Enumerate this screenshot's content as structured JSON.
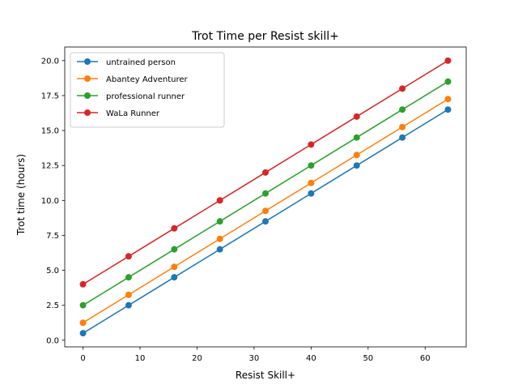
{
  "chart_data": {
    "type": "line",
    "title": "Trot Time per Resist skill+",
    "xlabel": "Resist Skill+",
    "ylabel": "Trot time (hours)",
    "xlim": [
      -3.2,
      67.2
    ],
    "ylim": [
      -0.475,
      20.975
    ],
    "x_ticks": [
      0,
      10,
      20,
      30,
      40,
      50,
      60
    ],
    "x_tick_labels": [
      "0",
      "10",
      "20",
      "30",
      "40",
      "50",
      "60"
    ],
    "y_ticks": [
      0,
      2.5,
      5,
      7.5,
      10,
      12.5,
      15,
      17.5,
      20
    ],
    "y_tick_labels": [
      "0.0",
      "2.5",
      "5.0",
      "7.5",
      "10.0",
      "12.5",
      "15.0",
      "17.5",
      "20.0"
    ],
    "grid": false,
    "legend_position": "top-left",
    "x": [
      0,
      8,
      16,
      24,
      32,
      40,
      48,
      56,
      64
    ],
    "series": [
      {
        "name": "untrained person",
        "color": "#1f77b4",
        "values": [
          0.5,
          2.5,
          4.5,
          6.5,
          8.5,
          10.5,
          12.5,
          14.5,
          16.5
        ]
      },
      {
        "name": "Abantey Adventurer",
        "color": "#ff7f0e",
        "values": [
          1.25,
          3.25,
          5.25,
          7.25,
          9.25,
          11.25,
          13.25,
          15.25,
          17.25
        ]
      },
      {
        "name": "professional runner",
        "color": "#2ca02c",
        "values": [
          2.5,
          4.5,
          6.5,
          8.5,
          10.5,
          12.5,
          14.5,
          16.5,
          18.5
        ]
      },
      {
        "name": "WaLa Runner",
        "color": "#d62728",
        "values": [
          4.0,
          6.0,
          8.0,
          10.0,
          12.0,
          14.0,
          16.0,
          18.0,
          20.0
        ]
      }
    ]
  }
}
